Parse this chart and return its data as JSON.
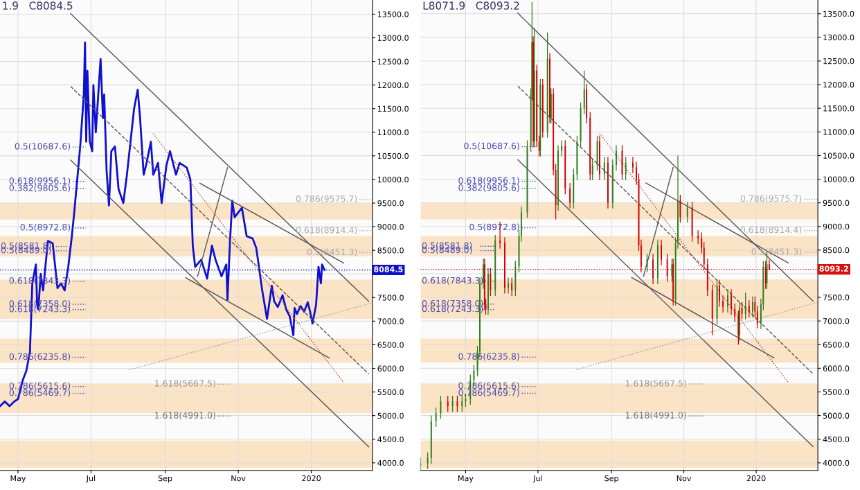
{
  "chart_data": [
    {
      "type": "line",
      "xlim": [
        "2019-04-16",
        "2020-02-21"
      ],
      "ylim": [
        3840,
        13800
      ],
      "xticks": [
        {
          "value": "2019-05-01",
          "label": "May"
        },
        {
          "value": "2019-07-01",
          "label": "Jul"
        },
        {
          "value": "2019-09-01",
          "label": "Sep"
        },
        {
          "value": "2019-11-01",
          "label": "Nov"
        },
        {
          "value": "2020-01-01",
          "label": "2020"
        }
      ],
      "yticks": [
        {
          "value": 4000,
          "label": "4000.0"
        },
        {
          "value": 4500,
          "label": "4500.0"
        },
        {
          "value": 5000,
          "label": "5000.0"
        },
        {
          "value": 5500,
          "label": "5500.0"
        },
        {
          "value": 6000,
          "label": "6000.0"
        },
        {
          "value": 6500,
          "label": "6500.0"
        },
        {
          "value": 7000,
          "label": "7000.0"
        },
        {
          "value": 7500,
          "label": "7500.0"
        },
        {
          "value": 8000,
          "label": null
        },
        {
          "value": 8500,
          "label": "8500.0"
        },
        {
          "value": 9000,
          "label": "9000.0"
        },
        {
          "value": 9500,
          "label": "9500.0"
        },
        {
          "value": 10000,
          "label": "10000.0"
        },
        {
          "value": 10500,
          "label": "10500.0"
        },
        {
          "value": 11000,
          "label": "11000.0"
        },
        {
          "value": 11500,
          "label": "11500.0"
        },
        {
          "value": 12000,
          "label": "12000.0"
        },
        {
          "value": 12500,
          "label": "12500.0"
        },
        {
          "value": 13000,
          "label": "13000.0"
        },
        {
          "value": 13500,
          "label": "13500.0"
        }
      ],
      "grid": true,
      "annotations": [
        "1.9   C8084.5"
      ],
      "bands": [
        {
          "axis": "y",
          "from": 9150,
          "to": 9500,
          "color": "#fbe3c6"
        },
        {
          "axis": "y",
          "from": 8370,
          "to": 8800,
          "color": "#fbe3c6"
        },
        {
          "axis": "y",
          "from": 7050,
          "to": 7880,
          "color": "#fbe3c6"
        },
        {
          "axis": "y",
          "from": 6120,
          "to": 6630,
          "color": "#fbe3c6"
        },
        {
          "axis": "y",
          "from": 5050,
          "to": 5680,
          "color": "#fbe3c6"
        },
        {
          "axis": "y",
          "from": 3890,
          "to": 4470,
          "color": "#fbe3c6"
        }
      ],
      "ref_lines": [
        {
          "axis": "y",
          "value": 8084.5,
          "label": "8084.5",
          "color": "#1010c8",
          "line_style": "dotted"
        },
        {
          "axis": "y",
          "value": 10687.6,
          "label": "0.5(10687.6)",
          "color": "#4b4bb5",
          "line_style": "dotted"
        },
        {
          "axis": "y",
          "value": 9956.1,
          "label": "0.618(9956.1)",
          "color": "#4b4bb5",
          "line_style": "dotted"
        },
        {
          "axis": "y",
          "value": 9805.6,
          "label": "0.382(9805.6)",
          "color": "#4b4bb5",
          "line_style": "dotted"
        },
        {
          "axis": "y",
          "value": 8972.8,
          "label": "0.5(8972.8)",
          "color": "#4b4bb5",
          "line_style": "dotted"
        },
        {
          "axis": "y",
          "value": 8581.8,
          "label": "0.5(8581.8)",
          "color": "#4b4bb5",
          "line_style": "dotted"
        },
        {
          "axis": "y",
          "value": 8489.0,
          "label": "0.5(8489.0)",
          "color": "#4b4bb5",
          "line_style": "dotted"
        },
        {
          "axis": "y",
          "value": 7843.3,
          "label": "0.618(7843.3)",
          "color": "#4b4bb5",
          "line_style": "dotted"
        },
        {
          "axis": "y",
          "value": 7358.0,
          "label": "0.618(7358.0)",
          "color": "#4b4bb5",
          "line_style": "dotted"
        },
        {
          "axis": "y",
          "value": 7243.3,
          "label": "0.618(7243.3)",
          "color": "#4b4bb5",
          "line_style": "dotted"
        },
        {
          "axis": "y",
          "value": 6235.8,
          "label": "0.786(6235.8)",
          "color": "#4b4bb5",
          "line_style": "dotted"
        },
        {
          "axis": "y",
          "value": 5615.6,
          "label": "0.786(5615.6)",
          "color": "#4b4bb5",
          "line_style": "dotted"
        },
        {
          "axis": "y",
          "value": 5469.7,
          "label": "0.786(5469.7)",
          "color": "#4b4bb5",
          "line_style": "dotted"
        },
        {
          "axis": "y",
          "value": 5667.5,
          "label": "1.618(5667.5)",
          "color": "#999999",
          "line_style": "dotted"
        },
        {
          "axis": "y",
          "value": 4991.0,
          "label": "1.618(4991.0)",
          "color": "#777777",
          "line_style": "dotted"
        },
        {
          "axis": "y",
          "value": 9575.7,
          "label": "0.786(9575.7)",
          "color": "#aaaaaa",
          "line_style": "dotted"
        },
        {
          "axis": "y",
          "value": 8914.4,
          "label": "0.618(8914.4)",
          "color": "#aaaaaa",
          "line_style": "dotted"
        },
        {
          "axis": "y",
          "value": 8451.3,
          "label": "0.5(8451.3)",
          "color": "#aaaaaa",
          "line_style": "dotted"
        }
      ],
      "series": [
        {
          "color": "#1010d0",
          "x": [
            "2019-04-16",
            "2019-04-20",
            "2019-04-24",
            "2019-04-28",
            "2019-05-01",
            "2019-05-05",
            "2019-05-08",
            "2019-05-11",
            "2019-05-13",
            "2019-05-16",
            "2019-05-17",
            "2019-05-18",
            "2019-05-20",
            "2019-05-22",
            "2019-05-26",
            "2019-05-30",
            "2019-06-03",
            "2019-06-06",
            "2019-06-09",
            "2019-06-12",
            "2019-06-15",
            "2019-06-17",
            "2019-06-22",
            "2019-06-25",
            "2019-06-26",
            "2019-06-27",
            "2019-06-28",
            "2019-06-30",
            "2019-07-02",
            "2019-07-03",
            "2019-07-05",
            "2019-07-09",
            "2019-07-11",
            "2019-07-12",
            "2019-07-14",
            "2019-07-16",
            "2019-07-18",
            "2019-07-21",
            "2019-07-24",
            "2019-07-28",
            "2019-07-31",
            "2019-08-03",
            "2019-08-06",
            "2019-08-09",
            "2019-08-11",
            "2019-08-14",
            "2019-08-16",
            "2019-08-20",
            "2019-08-22",
            "2019-08-26",
            "2019-08-29",
            "2019-09-02",
            "2019-09-05",
            "2019-09-10",
            "2019-09-13",
            "2019-09-19",
            "2019-09-22",
            "2019-09-24",
            "2019-09-26",
            "2019-10-01",
            "2019-10-06",
            "2019-10-10",
            "2019-10-13",
            "2019-10-18",
            "2019-10-22",
            "2019-10-23",
            "2019-10-25",
            "2019-10-27",
            "2019-10-29",
            "2019-11-04",
            "2019-11-08",
            "2019-11-13",
            "2019-11-16",
            "2019-11-18",
            "2019-11-21",
            "2019-11-25",
            "2019-11-29",
            "2019-12-01",
            "2019-12-04",
            "2019-12-08",
            "2019-12-11",
            "2019-12-14",
            "2019-12-17",
            "2019-12-18",
            "2019-12-20",
            "2019-12-23",
            "2019-12-26",
            "2019-12-29",
            "2019-12-31",
            "2020-01-02",
            "2020-01-05",
            "2020-01-07",
            "2020-01-09",
            "2020-01-10",
            "2020-01-12"
          ],
          "values": [
            5200,
            5300,
            5200,
            5300,
            5350,
            5750,
            5950,
            6350,
            7800,
            8200,
            7350,
            7250,
            8000,
            7650,
            8700,
            8650,
            7700,
            7800,
            7650,
            8150,
            8800,
            9300,
            10700,
            11800,
            12900,
            10800,
            12300,
            10800,
            10600,
            12000,
            11000,
            12550,
            11300,
            11800,
            10200,
            9450,
            10600,
            10700,
            9800,
            9500,
            10100,
            10800,
            11500,
            11900,
            11300,
            10100,
            10300,
            10800,
            10100,
            10350,
            9500,
            10300,
            10600,
            10100,
            10350,
            10250,
            10000,
            8600,
            8150,
            8300,
            7900,
            8600,
            8300,
            7950,
            8200,
            7450,
            8650,
            9550,
            9200,
            9400,
            8800,
            8750,
            8550,
            8200,
            7650,
            7050,
            7750,
            7420,
            7300,
            7550,
            7250,
            7100,
            6700,
            7280,
            7150,
            7320,
            7200,
            7400,
            7200,
            6950,
            7350,
            8150,
            7800,
            8200,
            8084.5
          ]
        },
        {
          "color": "#555555",
          "line_style": "solid",
          "x": [
            "2019-06-14",
            "2020-02-18"
          ],
          "values": [
            13510,
            7420
          ]
        },
        {
          "color": "#555555",
          "line_style": "solid",
          "x": [
            "2019-06-14",
            "2020-02-18"
          ],
          "values": [
            10410,
            4340
          ]
        },
        {
          "color": "#555555",
          "line_style": "dashed",
          "x": [
            "2019-06-14",
            "2020-02-18"
          ],
          "values": [
            11970,
            5880
          ]
        },
        {
          "color": "#c04040",
          "line_style": "dotted",
          "x": [
            "2019-08-22",
            "2020-01-28"
          ],
          "values": [
            10970,
            5700
          ]
        },
        {
          "color": "#999999",
          "line_style": "dotted",
          "x": [
            "2019-08-02",
            "2020-02-21"
          ],
          "values": [
            5970,
            7390
          ]
        },
        {
          "color": "#555555",
          "line_style": "solid",
          "x": [
            "2019-09-30",
            "2020-01-28"
          ],
          "values": [
            9920,
            8230
          ]
        },
        {
          "color": "#555555",
          "line_style": "solid",
          "x": [
            "2019-09-18",
            "2020-01-16"
          ],
          "values": [
            7920,
            6220
          ]
        },
        {
          "color": "#555555",
          "line_style": "solid",
          "x": [
            "2019-09-28",
            "2019-10-23"
          ],
          "values": [
            7950,
            10250
          ]
        }
      ]
    },
    {
      "type": "candlestick",
      "xlim": [
        "2019-03-24",
        "2020-02-22"
      ],
      "ylim": [
        3840,
        13790
      ],
      "xticks": [
        {
          "value": "2019-05-01",
          "label": "May"
        },
        {
          "value": "2019-07-01",
          "label": "Jul"
        },
        {
          "value": "2019-09-01",
          "label": "Sep"
        },
        {
          "value": "2019-11-01",
          "label": "Nov"
        },
        {
          "value": "2020-01-01",
          "label": "2020"
        }
      ],
      "yticks": [
        {
          "value": 4000,
          "label": "4000.0"
        },
        {
          "value": 4500,
          "label": "4500.0"
        },
        {
          "value": 5000,
          "label": "5000.0"
        },
        {
          "value": 5500,
          "label": "5500.0"
        },
        {
          "value": 6000,
          "label": "6000.0"
        },
        {
          "value": 6500,
          "label": "6500.0"
        },
        {
          "value": 7000,
          "label": "7000.0"
        },
        {
          "value": 7500,
          "label": "7500.0"
        },
        {
          "value": 8000,
          "label": null
        },
        {
          "value": 8500,
          "label": "8500.0"
        },
        {
          "value": 9000,
          "label": "9000.0"
        },
        {
          "value": 9500,
          "label": "9500.0"
        },
        {
          "value": 10000,
          "label": "10000.0"
        },
        {
          "value": 10500,
          "label": "10500.0"
        },
        {
          "value": 11000,
          "label": "11000.0"
        },
        {
          "value": 11500,
          "label": "11500.0"
        },
        {
          "value": 12000,
          "label": "12000.0"
        },
        {
          "value": 12500,
          "label": "12500.0"
        },
        {
          "value": 13000,
          "label": "13000.0"
        },
        {
          "value": 13500,
          "label": "13500.0"
        }
      ],
      "grid": true,
      "annotations": [
        "L8071.9   C8093.2"
      ],
      "bands": [
        {
          "axis": "y",
          "from": 9150,
          "to": 9500,
          "color": "#fbe3c6"
        },
        {
          "axis": "y",
          "from": 8370,
          "to": 8800,
          "color": "#fbe3c6"
        },
        {
          "axis": "y",
          "from": 7050,
          "to": 7880,
          "color": "#fbe3c6"
        },
        {
          "axis": "y",
          "from": 6120,
          "to": 6630,
          "color": "#fbe3c6"
        },
        {
          "axis": "y",
          "from": 5050,
          "to": 5680,
          "color": "#fbe3c6"
        },
        {
          "axis": "y",
          "from": 3890,
          "to": 4470,
          "color": "#fbe3c6"
        }
      ],
      "ref_lines": [
        {
          "axis": "y",
          "value": 8093.2,
          "label": "8093.2",
          "color": "#d81010",
          "line_style": "dotted"
        },
        {
          "axis": "y",
          "value": 10687.6,
          "label": "0.5(10687.6)",
          "color": "#4b4bb5",
          "line_style": "dotted"
        },
        {
          "axis": "y",
          "value": 9956.1,
          "label": "0.618(9956.1)",
          "color": "#4b4bb5",
          "line_style": "dotted"
        },
        {
          "axis": "y",
          "value": 9805.6,
          "label": "0.382(9805.6)",
          "color": "#4b4bb5",
          "line_style": "dotted"
        },
        {
          "axis": "y",
          "value": 8972.8,
          "label": "0.5(8972.8)",
          "color": "#4b4bb5",
          "line_style": "dotted"
        },
        {
          "axis": "y",
          "value": 8581.8,
          "label": "0.5(8581.8)",
          "color": "#4b4bb5",
          "line_style": "dotted"
        },
        {
          "axis": "y",
          "value": 8489.0,
          "label": "0.5(8489.0)",
          "color": "#4b4bb5",
          "line_style": "dotted"
        },
        {
          "axis": "y",
          "value": 7843.3,
          "label": "0.618(7843.3)",
          "color": "#4b4bb5",
          "line_style": "dotted"
        },
        {
          "axis": "y",
          "value": 7358.0,
          "label": "0.618(7358.0)",
          "color": "#4b4bb5",
          "line_style": "dotted"
        },
        {
          "axis": "y",
          "value": 7243.3,
          "label": "0.618(7243.3)",
          "color": "#4b4bb5",
          "line_style": "dotted"
        },
        {
          "axis": "y",
          "value": 6235.8,
          "label": "0.786(6235.8)",
          "color": "#4b4bb5",
          "line_style": "dotted"
        },
        {
          "axis": "y",
          "value": 5615.6,
          "label": "0.786(5615.6)",
          "color": "#4b4bb5",
          "line_style": "dotted"
        },
        {
          "axis": "y",
          "value": 5469.7,
          "label": "0.786(5469.7)",
          "color": "#4b4bb5",
          "line_style": "dotted"
        },
        {
          "axis": "y",
          "value": 5667.5,
          "label": "1.618(5667.5)",
          "color": "#999999",
          "line_style": "dotted"
        },
        {
          "axis": "y",
          "value": 4991.0,
          "label": "1.618(4991.0)",
          "color": "#777777",
          "line_style": "dotted"
        },
        {
          "axis": "y",
          "value": 9575.7,
          "label": "0.786(9575.7)",
          "color": "#aaaaaa",
          "line_style": "dotted"
        },
        {
          "axis": "y",
          "value": 8914.4,
          "label": "0.618(8914.4)",
          "color": "#aaaaaa",
          "line_style": "dotted"
        },
        {
          "axis": "y",
          "value": 8451.3,
          "label": "0.5(8451.3)",
          "color": "#aaaaaa",
          "line_style": "dotted"
        }
      ],
      "x": [
        "2019-03-24",
        "2019-03-30",
        "2019-04-02",
        "2019-04-06",
        "2019-04-10",
        "2019-04-16",
        "2019-04-20",
        "2019-04-24",
        "2019-04-28",
        "2019-05-01",
        "2019-05-05",
        "2019-05-08",
        "2019-05-11",
        "2019-05-13",
        "2019-05-16",
        "2019-05-17",
        "2019-05-18",
        "2019-05-20",
        "2019-05-22",
        "2019-05-26",
        "2019-05-30",
        "2019-06-03",
        "2019-06-06",
        "2019-06-09",
        "2019-06-12",
        "2019-06-15",
        "2019-06-17",
        "2019-06-22",
        "2019-06-25",
        "2019-06-26",
        "2019-06-27",
        "2019-06-28",
        "2019-06-30",
        "2019-07-02",
        "2019-07-03",
        "2019-07-05",
        "2019-07-09",
        "2019-07-11",
        "2019-07-12",
        "2019-07-14",
        "2019-07-16",
        "2019-07-18",
        "2019-07-21",
        "2019-07-24",
        "2019-07-28",
        "2019-07-31",
        "2019-08-03",
        "2019-08-06",
        "2019-08-09",
        "2019-08-11",
        "2019-08-14",
        "2019-08-16",
        "2019-08-20",
        "2019-08-22",
        "2019-08-26",
        "2019-08-29",
        "2019-09-02",
        "2019-09-05",
        "2019-09-10",
        "2019-09-13",
        "2019-09-19",
        "2019-09-22",
        "2019-09-24",
        "2019-09-26",
        "2019-10-01",
        "2019-10-06",
        "2019-10-10",
        "2019-10-13",
        "2019-10-18",
        "2019-10-22",
        "2019-10-23",
        "2019-10-25",
        "2019-10-27",
        "2019-10-29",
        "2019-11-04",
        "2019-11-08",
        "2019-11-13",
        "2019-11-16",
        "2019-11-18",
        "2019-11-21",
        "2019-11-25",
        "2019-11-29",
        "2019-12-01",
        "2019-12-04",
        "2019-12-08",
        "2019-12-11",
        "2019-12-14",
        "2019-12-17",
        "2019-12-18",
        "2019-12-20",
        "2019-12-23",
        "2019-12-26",
        "2019-12-29",
        "2019-12-31",
        "2020-01-02",
        "2020-01-05",
        "2020-01-07",
        "2020-01-09",
        "2020-01-10",
        "2020-01-12"
      ],
      "ohlc": [
        [
          3950,
          4110,
          3830,
          3990
        ],
        [
          3990,
          4220,
          3870,
          4100
        ],
        [
          4100,
          5000,
          3980,
          4880
        ],
        [
          4880,
          5170,
          4760,
          5050
        ],
        [
          5050,
          5420,
          4930,
          5300
        ],
        [
          5300,
          5420,
          5080,
          5200
        ],
        [
          5200,
          5420,
          5080,
          5300
        ],
        [
          5300,
          5420,
          5080,
          5200
        ],
        [
          5200,
          5420,
          5080,
          5300
        ],
        [
          5300,
          5470,
          5180,
          5350
        ],
        [
          5350,
          5870,
          5230,
          5750
        ],
        [
          5750,
          6070,
          5630,
          5950
        ],
        [
          5950,
          6470,
          5830,
          6350
        ],
        [
          6350,
          7920,
          6230,
          7800
        ],
        [
          7800,
          8320,
          7680,
          8200
        ],
        [
          8200,
          8320,
          7230,
          7350
        ],
        [
          7350,
          7470,
          7130,
          7250
        ],
        [
          7250,
          8120,
          7130,
          8000
        ],
        [
          8000,
          8120,
          7530,
          7650
        ],
        [
          7650,
          8820,
          7530,
          8700
        ],
        [
          8700,
          9100,
          8530,
          8650
        ],
        [
          8650,
          8770,
          7580,
          7700
        ],
        [
          7700,
          7920,
          7580,
          7800
        ],
        [
          7800,
          7920,
          7530,
          7650
        ],
        [
          7650,
          8270,
          7530,
          8150
        ],
        [
          8150,
          8920,
          8030,
          8800
        ],
        [
          8800,
          9420,
          8680,
          9300
        ],
        [
          9300,
          10820,
          9180,
          10700
        ],
        [
          10700,
          11920,
          10580,
          11800
        ],
        [
          11800,
          13750,
          11680,
          12900
        ],
        [
          12900,
          13020,
          10680,
          10800
        ],
        [
          10800,
          13200,
          10680,
          12300
        ],
        [
          12300,
          12420,
          10680,
          10800
        ],
        [
          10800,
          10920,
          10480,
          10600
        ],
        [
          10600,
          12120,
          10480,
          12000
        ],
        [
          12000,
          12120,
          10880,
          11000
        ],
        [
          11000,
          13100,
          10880,
          12550
        ],
        [
          12550,
          12670,
          11180,
          11300
        ],
        [
          11300,
          11920,
          11180,
          11800
        ],
        [
          11800,
          11920,
          10080,
          10200
        ],
        [
          10200,
          10320,
          9150,
          9450
        ],
        [
          9450,
          10720,
          9330,
          10600
        ],
        [
          10600,
          10820,
          10480,
          10700
        ],
        [
          10700,
          10820,
          9680,
          9800
        ],
        [
          9800,
          9920,
          9380,
          9500
        ],
        [
          9500,
          10220,
          9380,
          10100
        ],
        [
          10100,
          10920,
          9980,
          10800
        ],
        [
          10800,
          11620,
          10680,
          11500
        ],
        [
          11500,
          12300,
          11380,
          11900
        ],
        [
          11900,
          12020,
          11180,
          11300
        ],
        [
          11300,
          11420,
          9980,
          10100
        ],
        [
          10100,
          10420,
          9980,
          10300
        ],
        [
          10300,
          10920,
          10180,
          10800
        ],
        [
          10800,
          10920,
          9980,
          10100
        ],
        [
          10100,
          10470,
          9980,
          10350
        ],
        [
          10350,
          10470,
          9380,
          9500
        ],
        [
          9500,
          10420,
          9380,
          10300
        ],
        [
          10300,
          10720,
          10180,
          10600
        ],
        [
          10600,
          10720,
          9980,
          10100
        ],
        [
          10100,
          10470,
          9980,
          10350
        ],
        [
          10350,
          10470,
          10130,
          10250
        ],
        [
          10250,
          10370,
          9880,
          10000
        ],
        [
          10000,
          10120,
          8480,
          8600
        ],
        [
          8600,
          8720,
          8030,
          8150
        ],
        [
          8150,
          8420,
          8030,
          8300
        ],
        [
          8300,
          8420,
          7780,
          7900
        ],
        [
          7900,
          8720,
          7780,
          8600
        ],
        [
          8600,
          8720,
          8180,
          8300
        ],
        [
          8300,
          8420,
          7830,
          7950
        ],
        [
          7950,
          8320,
          7830,
          8200
        ],
        [
          8200,
          8320,
          7330,
          7450
        ],
        [
          7450,
          8770,
          7330,
          8650
        ],
        [
          8650,
          10500,
          8530,
          9550
        ],
        [
          9550,
          9670,
          9080,
          9200
        ],
        [
          9200,
          9520,
          9080,
          9400
        ],
        [
          9400,
          9520,
          8680,
          8800
        ],
        [
          8800,
          8920,
          8630,
          8750
        ],
        [
          8750,
          8870,
          8430,
          8550
        ],
        [
          8550,
          8670,
          8080,
          8200
        ],
        [
          8200,
          8320,
          7530,
          7650
        ],
        [
          7650,
          7770,
          6700,
          7050
        ],
        [
          7050,
          7870,
          6930,
          7750
        ],
        [
          7750,
          7870,
          7300,
          7420
        ],
        [
          7420,
          7540,
          7180,
          7300
        ],
        [
          7300,
          7670,
          7180,
          7550
        ],
        [
          7550,
          7670,
          7130,
          7250
        ],
        [
          7250,
          7370,
          6980,
          7100
        ],
        [
          7100,
          7220,
          6500,
          6700
        ],
        [
          6700,
          7400,
          6580,
          7280
        ],
        [
          7280,
          7400,
          7030,
          7150
        ],
        [
          7150,
          7600,
          7030,
          7320
        ],
        [
          7320,
          7440,
          7080,
          7200
        ],
        [
          7200,
          7520,
          7080,
          7400
        ],
        [
          7400,
          7520,
          7080,
          7200
        ],
        [
          7200,
          7320,
          6850,
          6950
        ],
        [
          6950,
          7470,
          6830,
          7350
        ],
        [
          7350,
          8270,
          7230,
          8150
        ],
        [
          8150,
          8270,
          7680,
          7800
        ],
        [
          7800,
          8450,
          7680,
          8200
        ],
        [
          8200,
          8300,
          8071.9,
          8093.2
        ]
      ],
      "colors": [
        "#2f7d1c",
        "#2f7d1c",
        "#2f7d1c",
        "#2f7d1c",
        "#2f7d1c",
        "#d10000",
        "#2f7d1c",
        "#d10000",
        "#2f7d1c",
        "#2f7d1c",
        "#2f7d1c",
        "#2f7d1c",
        "#2f7d1c",
        "#2f7d1c",
        "#2f7d1c",
        "#d10000",
        "#d10000",
        "#2f7d1c",
        "#d10000",
        "#2f7d1c",
        "#d10000",
        "#d10000",
        "#2f7d1c",
        "#d10000",
        "#2f7d1c",
        "#2f7d1c",
        "#2f7d1c",
        "#2f7d1c",
        "#2f7d1c",
        "#2f7d1c",
        "#d10000",
        "#2f7d1c",
        "#d10000",
        "#d10000",
        "#2f7d1c",
        "#d10000",
        "#2f7d1c",
        "#d10000",
        "#2f7d1c",
        "#d10000",
        "#d10000",
        "#2f7d1c",
        "#2f7d1c",
        "#d10000",
        "#d10000",
        "#2f7d1c",
        "#2f7d1c",
        "#2f7d1c",
        "#2f7d1c",
        "#d10000",
        "#d10000",
        "#2f7d1c",
        "#2f7d1c",
        "#d10000",
        "#2f7d1c",
        "#d10000",
        "#2f7d1c",
        "#2f7d1c",
        "#d10000",
        "#2f7d1c",
        "#d10000",
        "#d10000",
        "#d10000",
        "#d10000",
        "#2f7d1c",
        "#d10000",
        "#2f7d1c",
        "#d10000",
        "#d10000",
        "#2f7d1c",
        "#d10000",
        "#2f7d1c",
        "#2f7d1c",
        "#d10000",
        "#2f7d1c",
        "#d10000",
        "#d10000",
        "#d10000",
        "#d10000",
        "#d10000",
        "#d10000",
        "#2f7d1c",
        "#d10000",
        "#d10000",
        "#2f7d1c",
        "#d10000",
        "#d10000",
        "#d10000",
        "#2f7d1c",
        "#d10000",
        "#2f7d1c",
        "#d10000",
        "#2f7d1c",
        "#d10000",
        "#d10000",
        "#2f7d1c",
        "#2f7d1c",
        "#d10000",
        "#2f7d1c",
        "#d10000"
      ],
      "series": [
        {
          "type": "line",
          "color": "#555555",
          "line_style": "solid",
          "x": [
            "2019-06-14",
            "2020-02-18"
          ],
          "values": [
            13510,
            7420
          ]
        },
        {
          "type": "line",
          "color": "#555555",
          "line_style": "solid",
          "x": [
            "2019-06-14",
            "2020-02-18"
          ],
          "values": [
            10410,
            4340
          ]
        },
        {
          "type": "line",
          "color": "#555555",
          "line_style": "dashed",
          "x": [
            "2019-06-14",
            "2020-02-18"
          ],
          "values": [
            11970,
            5880
          ]
        },
        {
          "type": "line",
          "color": "#c04040",
          "line_style": "dotted",
          "x": [
            "2019-08-22",
            "2020-01-28"
          ],
          "values": [
            10970,
            5700
          ]
        },
        {
          "type": "line",
          "color": "#999999",
          "line_style": "dotted",
          "x": [
            "2019-08-02",
            "2020-02-21"
          ],
          "values": [
            5970,
            7390
          ]
        },
        {
          "type": "line",
          "color": "#555555",
          "line_style": "solid",
          "x": [
            "2019-09-30",
            "2020-01-28"
          ],
          "values": [
            9920,
            8230
          ]
        },
        {
          "type": "line",
          "color": "#555555",
          "line_style": "solid",
          "x": [
            "2019-09-18",
            "2020-01-16"
          ],
          "values": [
            7920,
            6220
          ]
        },
        {
          "type": "line",
          "color": "#555555",
          "line_style": "solid",
          "x": [
            "2019-09-28",
            "2019-10-23"
          ],
          "values": [
            7950,
            10250
          ]
        }
      ]
    }
  ]
}
